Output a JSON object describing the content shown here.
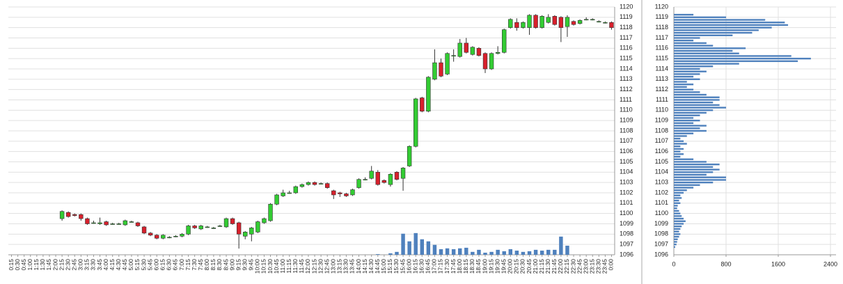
{
  "chart_data": [
    {
      "type": "candlestick",
      "categories": [
        "0:15",
        "0:30",
        "0:45",
        "1:00",
        "1:15",
        "1:30",
        "1:45",
        "2:00",
        "2:15",
        "2:30",
        "2:45",
        "3:00",
        "3:15",
        "3:30",
        "3:45",
        "4:00",
        "4:15",
        "4:30",
        "4:45",
        "5:00",
        "5:15",
        "5:30",
        "5:45",
        "6:00",
        "6:15",
        "6:30",
        "6:45",
        "7:00",
        "7:15",
        "7:30",
        "7:45",
        "8:00",
        "8:15",
        "8:30",
        "8:45",
        "9:00",
        "9:15",
        "9:30",
        "9:45",
        "10:00",
        "10:15",
        "10:30",
        "10:45",
        "11:00",
        "11:15",
        "11:30",
        "11:45",
        "12:00",
        "12:15",
        "12:30",
        "12:45",
        "13:00",
        "13:15",
        "13:30",
        "13:45",
        "14:00",
        "14:15",
        "14:30",
        "14:45",
        "15:00",
        "15:15",
        "15:30",
        "15:45",
        "16:00",
        "16:15",
        "16:30",
        "16:45",
        "17:00",
        "17:15",
        "17:30",
        "17:45",
        "18:00",
        "18:15",
        "18:30",
        "18:45",
        "19:00",
        "19:15",
        "19:30",
        "19:45",
        "20:00",
        "20:15",
        "20:30",
        "20:45",
        "21:00",
        "21:15",
        "21:30",
        "21:45",
        "22:00",
        "22:15",
        "22:30",
        "22:45",
        "23:00",
        "23:15",
        "23:30",
        "23:45",
        "0:00"
      ],
      "open": [
        null,
        null,
        null,
        null,
        null,
        null,
        null,
        null,
        1099.5,
        1100.1,
        1099.9,
        1099.9,
        1099.5,
        1099.1,
        1099.0,
        1099.2,
        1099.0,
        1099.0,
        1098.9,
        1099.2,
        1099.1,
        1098.7,
        1098.1,
        1097.9,
        1097.6,
        1097.7,
        1097.8,
        1097.8,
        1098.0,
        1098.8,
        1098.5,
        1098.7,
        1098.6,
        1098.8,
        1098.7,
        1099.5,
        1099.1,
        1097.8,
        1098.0,
        1098.2,
        1099.1,
        1099.3,
        1100.9,
        1101.7,
        1102.0,
        1102.0,
        1102.6,
        1102.8,
        1103.0,
        1102.9,
        1102.9,
        1102.2,
        1102.0,
        1101.9,
        1101.8,
        1102.5,
        1103.3,
        1103.4,
        1104.0,
        1103.2,
        1102.8,
        1104.0,
        1103.4,
        1104.6,
        1106.5,
        1111.2,
        1109.9,
        1113.0,
        1114.6,
        1113.5,
        1115.3,
        1115.2,
        1116.5,
        1115.4,
        1116.0,
        1115.5,
        1114.0,
        1115.5,
        1115.6,
        1118.0,
        1118.5,
        1118.0,
        1118.0,
        1119.2,
        1118.0,
        1118.5,
        1119.1,
        1119.0,
        1118.1,
        1118.6,
        1118.4,
        1118.8,
        1118.8,
        1118.6,
        1118.5,
        1118.5
      ],
      "high": [
        null,
        null,
        null,
        null,
        null,
        null,
        null,
        null,
        1100.3,
        1100.2,
        1100.0,
        1100.0,
        1099.6,
        1099.3,
        1099.6,
        1099.3,
        1099.1,
        1099.1,
        1099.4,
        1099.3,
        1099.2,
        1098.8,
        1098.2,
        1098.0,
        1098.0,
        1097.8,
        1097.9,
        1098.1,
        1098.9,
        1098.9,
        1098.9,
        1098.8,
        1098.7,
        1098.9,
        1099.6,
        1099.6,
        1099.2,
        1098.3,
        1098.7,
        1099.3,
        1099.6,
        1101.0,
        1101.9,
        1102.3,
        1102.2,
        1102.7,
        1102.9,
        1103.1,
        1103.1,
        1103.0,
        1103.0,
        1102.3,
        1102.1,
        1102.0,
        1102.4,
        1103.4,
        1103.5,
        1104.6,
        1104.2,
        1103.3,
        1103.9,
        1104.1,
        1104.5,
        1106.6,
        1111.2,
        1111.3,
        1113.3,
        1115.9,
        1115.0,
        1115.6,
        1115.9,
        1116.9,
        1117.0,
        1116.2,
        1116.1,
        1115.6,
        1115.6,
        1116.2,
        1117.9,
        1118.9,
        1118.9,
        1118.6,
        1119.3,
        1119.3,
        1119.2,
        1119.3,
        1119.2,
        1119.1,
        1119.2,
        1118.7,
        1118.8,
        1119.0,
        1118.9,
        1118.7,
        1118.6,
        1118.6
      ],
      "low": [
        null,
        null,
        null,
        null,
        null,
        null,
        null,
        null,
        1099.3,
        1099.6,
        1099.7,
        1099.3,
        1098.9,
        1099.0,
        1098.9,
        1098.8,
        1098.9,
        1098.9,
        1098.8,
        1099.1,
        1098.7,
        1098.0,
        1097.8,
        1097.5,
        1097.5,
        1097.6,
        1097.7,
        1097.7,
        1097.9,
        1098.5,
        1098.4,
        1098.6,
        1098.5,
        1098.7,
        1098.6,
        1098.9,
        1096.6,
        1097.5,
        1097.3,
        1098.1,
        1099.0,
        1099.2,
        1100.8,
        1101.6,
        1101.9,
        1101.9,
        1102.5,
        1102.7,
        1102.7,
        1102.8,
        1102.4,
        1101.4,
        1101.6,
        1101.6,
        1101.7,
        1102.4,
        1103.2,
        1103.3,
        1102.7,
        1102.9,
        1102.6,
        1103.2,
        1102.2,
        1104.5,
        1106.4,
        1109.8,
        1109.8,
        1112.9,
        1113.2,
        1113.4,
        1114.7,
        1115.1,
        1115.5,
        1115.3,
        1115.2,
        1113.6,
        1113.9,
        1115.4,
        1115.5,
        1117.9,
        1117.7,
        1117.9,
        1117.3,
        1117.9,
        1117.9,
        1118.4,
        1118.2,
        1116.6,
        1117.1,
        1118.2,
        1118.3,
        1118.7,
        1118.7,
        1118.5,
        1118.4,
        1117.8
      ],
      "close": [
        null,
        null,
        null,
        null,
        null,
        null,
        null,
        null,
        1100.2,
        1099.7,
        1099.8,
        1099.5,
        1099.0,
        1099.1,
        1099.1,
        1098.9,
        1099.0,
        1099.0,
        1099.3,
        1099.2,
        1098.8,
        1098.1,
        1097.9,
        1097.6,
        1097.9,
        1097.7,
        1097.8,
        1098.0,
        1098.8,
        1098.6,
        1098.8,
        1098.7,
        1098.6,
        1098.8,
        1099.5,
        1099.0,
        1098.0,
        1098.2,
        1098.6,
        1099.2,
        1099.5,
        1100.9,
        1101.8,
        1102.0,
        1102.0,
        1102.6,
        1102.8,
        1103.0,
        1102.8,
        1102.9,
        1102.5,
        1101.8,
        1101.9,
        1101.7,
        1102.3,
        1103.3,
        1103.3,
        1104.1,
        1102.8,
        1103.0,
        1103.8,
        1103.3,
        1104.4,
        1106.5,
        1111.1,
        1109.9,
        1113.2,
        1114.6,
        1113.3,
        1115.5,
        1115.3,
        1116.5,
        1115.6,
        1116.1,
        1115.3,
        1114.0,
        1115.5,
        1115.6,
        1117.8,
        1118.8,
        1118.0,
        1118.5,
        1119.2,
        1118.0,
        1119.1,
        1119.0,
        1118.3,
        1118.0,
        1119.0,
        1118.3,
        1118.7,
        1118.8,
        1118.8,
        1118.6,
        1118.5,
        1118.0
      ],
      "volume": [
        0,
        0,
        0,
        0,
        0,
        0,
        0,
        0,
        0,
        0,
        0,
        0,
        0,
        0,
        0,
        0,
        0,
        0,
        0,
        0,
        0,
        0,
        0,
        0,
        0,
        0,
        0,
        0,
        0,
        0,
        0,
        0,
        0,
        0,
        0,
        0,
        0,
        0,
        0,
        0,
        0,
        0,
        0,
        0,
        0,
        0,
        0,
        0,
        0,
        0,
        0,
        0,
        0,
        0,
        0,
        0,
        0,
        0,
        3,
        0,
        7,
        14,
        102,
        65,
        105,
        75,
        65,
        48,
        27,
        31,
        27,
        31,
        34,
        14,
        24,
        10,
        14,
        24,
        17,
        27,
        20,
        14,
        17,
        24,
        20,
        24,
        24,
        88,
        44,
        0,
        0,
        0,
        0,
        0,
        0,
        0
      ],
      "up_color": "#33cc33",
      "down_color": "#d8202c",
      "volume_color": "#4f81bd",
      "ylim": [
        1096,
        1120
      ],
      "yticks": [
        1096,
        1097,
        1098,
        1099,
        1100,
        1101,
        1102,
        1103,
        1104,
        1105,
        1106,
        1107,
        1108,
        1109,
        1110,
        1111,
        1112,
        1113,
        1114,
        1115,
        1116,
        1117,
        1118,
        1119,
        1120
      ],
      "y2lim": [
        0,
        1200
      ],
      "grid": true
    },
    {
      "type": "hbar",
      "y": [
        1119.25,
        1119,
        1118.75,
        1118.5,
        1118.25,
        1118,
        1117.75,
        1117.5,
        1117.25,
        1117,
        1116.75,
        1116.5,
        1116.25,
        1116,
        1115.75,
        1115.5,
        1115.25,
        1115,
        1114.75,
        1114.5,
        1114.25,
        1114,
        1113.75,
        1113.5,
        1113.25,
        1113,
        1112.75,
        1112.5,
        1112.25,
        1112,
        1111.75,
        1111.5,
        1111.25,
        1111,
        1110.75,
        1110.5,
        1110.25,
        1110,
        1109.75,
        1109.5,
        1109.25,
        1109,
        1108.75,
        1108.5,
        1108.25,
        1108,
        1107.75,
        1107.5,
        1107.25,
        1107,
        1106.75,
        1106.5,
        1106.25,
        1106,
        1105.75,
        1105.5,
        1105.25,
        1105,
        1104.75,
        1104.5,
        1104.25,
        1104,
        1103.75,
        1103.5,
        1103.25,
        1103,
        1102.75,
        1102.5,
        1102.25,
        1102,
        1101.75,
        1101.5,
        1101.25,
        1101,
        1100.75,
        1100.5,
        1100.25,
        1100,
        1099.75,
        1099.5,
        1099.25,
        1099,
        1098.75,
        1098.5,
        1098.25,
        1098,
        1097.75,
        1097.5,
        1097.25,
        1097,
        1096.75
      ],
      "values": [
        300,
        800,
        1400,
        1700,
        1750,
        1500,
        1300,
        1200,
        900,
        400,
        300,
        500,
        600,
        1100,
        900,
        1000,
        1800,
        2100,
        1900,
        1000,
        600,
        400,
        500,
        400,
        300,
        400,
        200,
        300,
        200,
        300,
        400,
        500,
        700,
        700,
        600,
        700,
        800,
        600,
        500,
        400,
        300,
        400,
        300,
        500,
        400,
        500,
        300,
        200,
        100,
        150,
        200,
        100,
        150,
        100,
        150,
        100,
        300,
        500,
        700,
        600,
        700,
        600,
        500,
        800,
        800,
        600,
        400,
        300,
        200,
        150,
        100,
        120,
        80,
        100,
        60,
        50,
        80,
        100,
        120,
        150,
        180,
        150,
        120,
        100,
        80,
        100,
        80,
        60,
        50,
        40,
        20
      ],
      "color": "#4f81bd",
      "xlim": [
        0,
        2400
      ],
      "xticks": [
        0,
        800,
        1600,
        2400
      ],
      "ylim": [
        1096,
        1120
      ],
      "yticks": [
        1096,
        1097,
        1098,
        1099,
        1100,
        1101,
        1102,
        1103,
        1104,
        1105,
        1106,
        1107,
        1108,
        1109,
        1110,
        1111,
        1112,
        1113,
        1114,
        1115,
        1116,
        1117,
        1118,
        1119,
        1120
      ],
      "grid": true
    }
  ]
}
